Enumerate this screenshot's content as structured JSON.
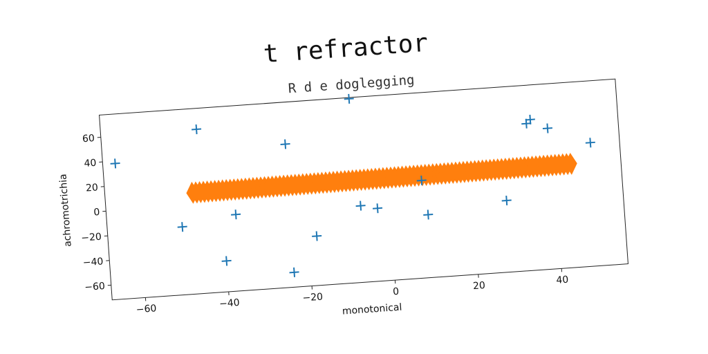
{
  "chart_data": {
    "type": "scatter",
    "title": "t refractor",
    "subtitle": "R d e doglegging",
    "xlabel": "monotonical",
    "ylabel": "achromotrichia",
    "xlim": [
      -68,
      56
    ],
    "ylim": [
      -72,
      78
    ],
    "xticks": [
      -60,
      -40,
      -20,
      0,
      20,
      40
    ],
    "yticks": [
      -60,
      -40,
      -20,
      0,
      20,
      40,
      60
    ],
    "grid": false,
    "colors": {
      "scatter": "#1f77b4",
      "line": "#ff7f0e"
    },
    "series": [
      {
        "type": "scatter",
        "marker": "plus",
        "points": [
          [
            -65,
            38
          ],
          [
            -45,
            61
          ],
          [
            -24,
            44
          ],
          [
            -8,
            77
          ],
          [
            34,
            47
          ],
          [
            35,
            50
          ],
          [
            39,
            42
          ],
          [
            49,
            28
          ],
          [
            -50,
            -17
          ],
          [
            -37,
            -10
          ],
          [
            -40,
            -47
          ],
          [
            -24,
            -60
          ],
          [
            -18,
            -32
          ],
          [
            -7,
            -10
          ],
          [
            -3,
            -13
          ],
          [
            8,
            7
          ],
          [
            9,
            -21
          ],
          [
            28,
            -14
          ]
        ]
      },
      {
        "type": "line",
        "marker": "diamond",
        "x_start": -47,
        "x_end": 44,
        "y_start": 10,
        "y_end": 12,
        "n_points": 100
      }
    ]
  }
}
